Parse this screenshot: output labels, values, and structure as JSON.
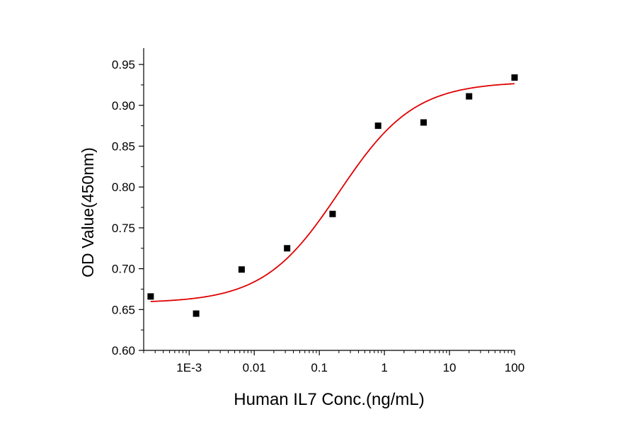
{
  "chart_data": {
    "type": "scatter",
    "xlabel": "Human IL7 Conc.(ng/mL)",
    "ylabel": "OD Value(450nm)",
    "x_scale": "log",
    "xlim": [
      0.0002,
      100
    ],
    "ylim": [
      0.6,
      0.97
    ],
    "x_ticks": [
      {
        "value": 0.001,
        "label": "1E-3"
      },
      {
        "value": 0.01,
        "label": "0.01"
      },
      {
        "value": 0.1,
        "label": "0.1"
      },
      {
        "value": 1,
        "label": "1"
      },
      {
        "value": 10,
        "label": "10"
      },
      {
        "value": 100,
        "label": "100"
      }
    ],
    "y_ticks": [
      {
        "value": 0.6,
        "label": "0.60"
      },
      {
        "value": 0.65,
        "label": "0.65"
      },
      {
        "value": 0.7,
        "label": "0.70"
      },
      {
        "value": 0.75,
        "label": "0.75"
      },
      {
        "value": 0.8,
        "label": "0.80"
      },
      {
        "value": 0.85,
        "label": "0.85"
      },
      {
        "value": 0.9,
        "label": "0.90"
      },
      {
        "value": 0.95,
        "label": "0.95"
      }
    ],
    "grid": false,
    "legend": "none",
    "series": [
      {
        "kind": "points",
        "marker": "square",
        "color": "#000000",
        "points": [
          {
            "x": 0.000256,
            "y": 0.666
          },
          {
            "x": 0.00128,
            "y": 0.645
          },
          {
            "x": 0.0064,
            "y": 0.699
          },
          {
            "x": 0.032,
            "y": 0.725
          },
          {
            "x": 0.16,
            "y": 0.767
          },
          {
            "x": 0.8,
            "y": 0.875
          },
          {
            "x": 4,
            "y": 0.879
          },
          {
            "x": 20,
            "y": 0.911
          },
          {
            "x": 100,
            "y": 0.934
          }
        ]
      },
      {
        "kind": "fit-curve",
        "model": "4PL",
        "color": "#e00000",
        "params": {
          "bottom": 0.658,
          "top": 0.929,
          "ec50": 0.2,
          "hill": 0.75
        },
        "x_range": [
          0.000256,
          100
        ]
      }
    ]
  }
}
